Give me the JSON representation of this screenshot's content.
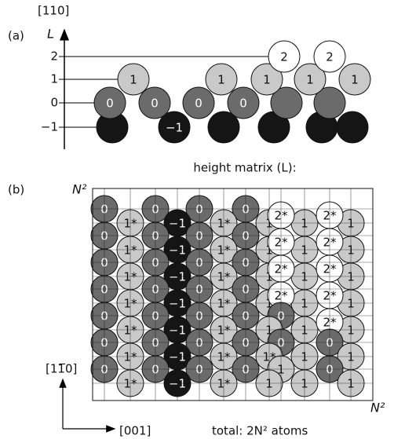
{
  "panel_a": {
    "label": "(a)",
    "direction": "[110]",
    "axis_label": "L",
    "axis_ticks": [
      "2",
      "1",
      "0",
      "−1"
    ],
    "row_2": [
      "2",
      "2"
    ],
    "row_1": [
      "1",
      "1",
      "1",
      "1",
      "1"
    ],
    "row_0": [
      "0",
      "0",
      "0",
      "0"
    ],
    "row_m1": [
      "−1"
    ]
  },
  "panel_b": {
    "label": "(b)",
    "title": "height matrix (L):",
    "size_top": "N²",
    "size_right": "N²",
    "dir_up": "[11̅0]",
    "dir_right": "[001]",
    "total": "total: 2N² atoms",
    "upper_rows": [
      [
        "0",
        "0",
        "0",
        "0",
        "2*",
        "2*"
      ],
      [
        "0",
        "0",
        "0",
        "0",
        "2*",
        "2*"
      ],
      [
        "0",
        "0",
        "0",
        "0",
        "2*",
        "2*"
      ],
      [
        "0",
        "0",
        "0",
        "0",
        "2*",
        "2*"
      ],
      [
        "0",
        "0",
        "0",
        "0",
        "0",
        "2*"
      ],
      [
        "0",
        "0",
        "0",
        "0",
        "0",
        "0"
      ],
      [
        "0",
        "0",
        "0",
        "0",
        "1",
        "0"
      ]
    ],
    "lower_rows": [
      [
        "1*",
        "−1",
        "1*",
        "1",
        "1",
        "1"
      ],
      [
        "1*",
        "−1",
        "1*",
        "1",
        "1",
        "1"
      ],
      [
        "1*",
        "−1",
        "1*",
        "1",
        "1",
        "1"
      ],
      [
        "1*",
        "−1",
        "1*",
        "1",
        "1",
        "1"
      ],
      [
        "1*",
        "−1",
        "1*",
        "1",
        "1",
        "1"
      ],
      [
        "1*",
        "−1",
        "1*",
        "1*",
        "1",
        "1"
      ],
      [
        "1*",
        "−1",
        "1*",
        "1",
        "1",
        "1"
      ]
    ]
  }
}
